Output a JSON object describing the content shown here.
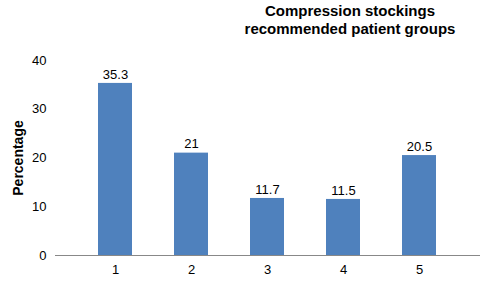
{
  "chart_data": {
    "type": "bar",
    "title": "Compression stockings recommended patient groups",
    "y_label": "Percentage",
    "categories": [
      "1",
      "2",
      "3",
      "4",
      "5"
    ],
    "values": [
      35.3,
      21,
      11.7,
      11.5,
      20.5
    ],
    "color": "#4f81bd",
    "ylim": [
      0,
      40
    ],
    "yticks": [
      0,
      10,
      20,
      30,
      40
    ],
    "grid": false,
    "data_labels": true
  }
}
